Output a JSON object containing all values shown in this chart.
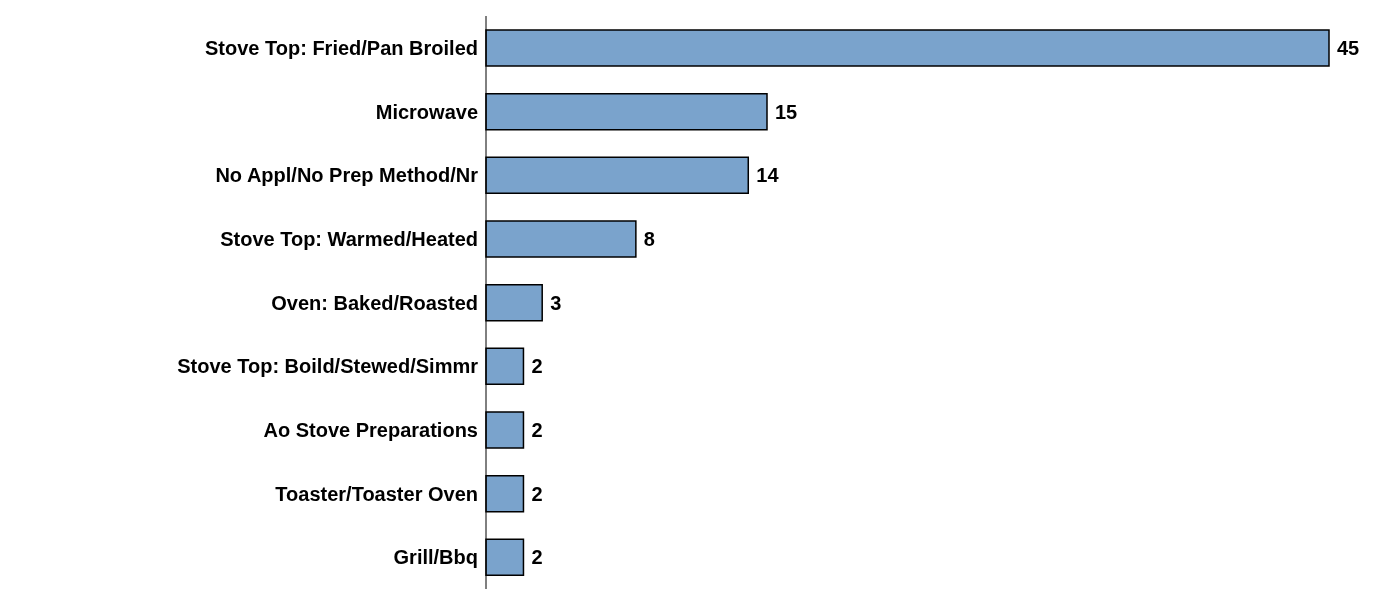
{
  "chart_data": {
    "type": "bar",
    "orientation": "horizontal",
    "categories": [
      "Stove Top: Fried/Pan Broiled",
      "Microwave",
      "No Appl/No Prep Method/Nr",
      "Stove Top: Warmed/Heated",
      "Oven: Baked/Roasted",
      "Stove Top: Boild/Stewed/Simmr",
      "Ao Stove Preparations",
      "Toaster/Toaster Oven",
      "Grill/Bbq"
    ],
    "values": [
      45,
      15,
      14,
      8,
      3,
      2,
      2,
      2,
      2
    ],
    "color": "#7aa3cc",
    "data_labels": true,
    "grid": false,
    "legend": false
  }
}
